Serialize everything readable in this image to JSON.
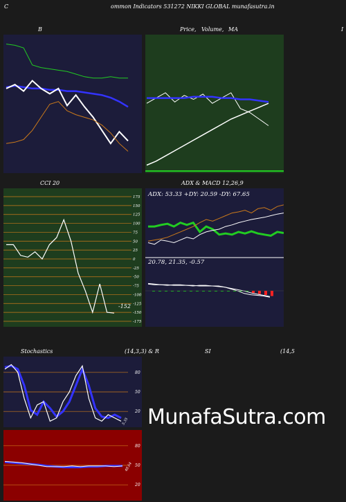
{
  "header": {
    "title": "ommon  Indicators 531272  NIKKI GLOBAL  munafasutra.in",
    "left_char": "C"
  },
  "labels": {
    "bb": "B",
    "price_a": "Price,",
    "price_b": "Volume,",
    "price_c": "MA",
    "right_char": "I",
    "cci": "CCI 20",
    "adx_macd": "ADX  & MACD 12,26,9",
    "adx_readout": "ADX: 53.33 +DY: 20.59 -DY: 67.65",
    "macd_readout": "20.78,  21.35,  -0.57",
    "cci_value": "-152",
    "stoch_a": "Stochastics",
    "stoch_b": "(14,3,3) & R",
    "stoch_c": "SI",
    "stoch_d": "(14,5",
    "stoch_value": "5.35",
    "rsi_value": "48.64"
  },
  "watermark": "MunafaSutra.com",
  "colors": {
    "navy": "#1c1c3a",
    "green_panel": "#1e3d1e",
    "red_panel": "#8b0000",
    "accent_orange": "#cc7a1a"
  },
  "chart_data": [
    {
      "type": "line",
      "name": "bollinger",
      "ylim": [
        0,
        100
      ],
      "series": [
        {
          "name": "green",
          "color": "#22cc22",
          "values": [
            96,
            95,
            93,
            80,
            78,
            77,
            76,
            75,
            73,
            71,
            70,
            70,
            71,
            70,
            70
          ]
        },
        {
          "name": "upper",
          "color": "#3333ff",
          "values": [
            63,
            64,
            63,
            62,
            62,
            61,
            61,
            60,
            60,
            59,
            58,
            57,
            55,
            52,
            48
          ]
        },
        {
          "name": "white",
          "color": "#ffffff",
          "values": [
            62,
            65,
            60,
            68,
            62,
            58,
            62,
            49,
            57,
            48,
            40,
            30,
            20,
            29,
            22
          ]
        },
        {
          "name": "orange",
          "color": "#cc7a1a",
          "values": [
            20,
            21,
            23,
            30,
            40,
            50,
            52,
            45,
            42,
            40,
            38,
            34,
            28,
            20,
            14
          ]
        }
      ]
    },
    {
      "type": "line",
      "name": "price_ma",
      "ylim": [
        0,
        100
      ],
      "series": [
        {
          "name": "white",
          "color": "#ffffff",
          "values": [
            52,
            56,
            60,
            53,
            58,
            55,
            59,
            52,
            56,
            60,
            48,
            45,
            40,
            35
          ]
        },
        {
          "name": "blue",
          "color": "#3333ff",
          "values": [
            56,
            56,
            56,
            56,
            56,
            57,
            57,
            57,
            56,
            56,
            55,
            55,
            54,
            53
          ]
        },
        {
          "name": "rising",
          "color": "#ffffff",
          "values": [
            5,
            8,
            12,
            16,
            20,
            24,
            28,
            32,
            36,
            40,
            43,
            46,
            49,
            52
          ]
        }
      ]
    },
    {
      "type": "line",
      "name": "cci",
      "ylim": [
        -175,
        175
      ],
      "yticks": [
        175,
        150,
        125,
        100,
        75,
        50,
        25,
        0,
        -25,
        -50,
        -75,
        -100,
        -125,
        -150,
        -175
      ],
      "series": [
        {
          "name": "cci",
          "color": "#ffffff",
          "values": [
            40,
            40,
            10,
            5,
            20,
            0,
            40,
            60,
            110,
            50,
            -40,
            -90,
            -150,
            -70,
            -150,
            -152
          ]
        }
      ]
    },
    {
      "type": "line",
      "name": "adx",
      "ylim": [
        0,
        100
      ],
      "series": [
        {
          "name": "adx",
          "color": "#22cc22",
          "values": [
            55,
            55,
            58,
            60,
            55,
            62,
            58,
            62,
            45,
            55,
            50,
            40,
            42,
            40,
            45,
            42,
            46,
            42,
            40,
            38,
            45,
            43
          ]
        },
        {
          "name": "plus",
          "color": "#cc7a1a",
          "values": [
            28,
            30,
            32,
            35,
            40,
            45,
            50,
            55,
            62,
            68,
            65,
            70,
            75,
            80,
            82,
            85,
            80,
            88,
            90,
            85,
            92,
            95
          ]
        },
        {
          "name": "minus",
          "color": "#ffffff",
          "values": [
            25,
            22,
            30,
            28,
            25,
            30,
            35,
            32,
            40,
            45,
            48,
            50,
            55,
            58,
            62,
            65,
            68,
            70,
            72,
            75,
            78,
            80
          ]
        }
      ]
    },
    {
      "type": "line",
      "name": "macd",
      "ylim": [
        -40,
        60
      ],
      "series": [
        {
          "name": "macd",
          "color": "#ffffff",
          "values": [
            24,
            23,
            22,
            21,
            22,
            22,
            21,
            20,
            21,
            21,
            20,
            19,
            18,
            15,
            12,
            8,
            6,
            5,
            4,
            2
          ]
        },
        {
          "name": "signal",
          "color": "#ffffff",
          "values": [
            23,
            22,
            22,
            22,
            21,
            21,
            21,
            21,
            20,
            20,
            20,
            20,
            18,
            16,
            14,
            12,
            9,
            7,
            5,
            3
          ]
        }
      ]
    },
    {
      "type": "line",
      "name": "stochastics",
      "ylim": [
        0,
        100
      ],
      "yticks": [
        80,
        50,
        20
      ],
      "series": [
        {
          "name": "d",
          "color": "#3333ff",
          "values": [
            88,
            90,
            85,
            60,
            22,
            15,
            35,
            25,
            12,
            20,
            35,
            60,
            85,
            60,
            25,
            12,
            10,
            15,
            10
          ]
        },
        {
          "name": "k",
          "color": "#ffffff",
          "values": [
            85,
            92,
            80,
            40,
            10,
            30,
            35,
            5,
            10,
            35,
            50,
            75,
            90,
            40,
            10,
            5,
            15,
            10,
            5
          ]
        }
      ]
    },
    {
      "type": "line",
      "name": "rsi",
      "ylim": [
        0,
        100
      ],
      "yticks": [
        80,
        50,
        20
      ],
      "series": [
        {
          "name": "rsi_blue",
          "color": "#3333ff",
          "values": [
            55,
            54,
            53,
            52,
            51,
            49,
            48,
            47,
            47,
            47,
            48,
            48,
            49,
            49,
            49
          ]
        },
        {
          "name": "rsi_white",
          "color": "#ffffff",
          "values": [
            56,
            55,
            54,
            52,
            50,
            48,
            48,
            48,
            49,
            48,
            49,
            49,
            49,
            48,
            49
          ]
        }
      ]
    }
  ]
}
